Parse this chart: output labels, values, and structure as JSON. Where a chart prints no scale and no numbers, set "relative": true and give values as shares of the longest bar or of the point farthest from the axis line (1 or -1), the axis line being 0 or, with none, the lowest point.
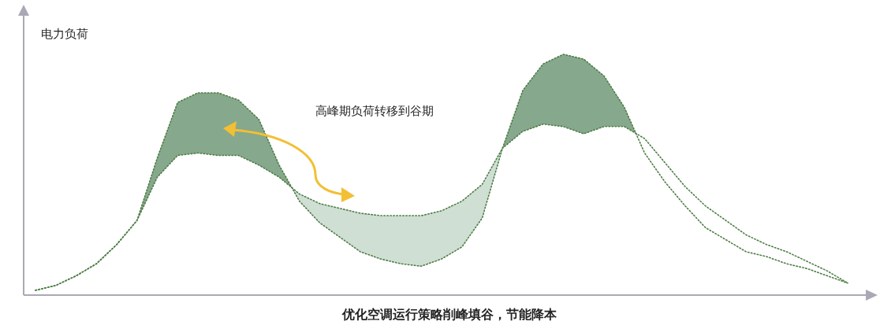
{
  "chart_data": {
    "type": "line",
    "relative": true,
    "xlabel": "优化空调运行策略削峰填谷，节能降本",
    "ylabel": "电力负荷",
    "annotations": [
      "高峰期负荷转移到谷期"
    ],
    "line_style": "dotted",
    "categories": [
      null,
      null,
      null,
      null,
      null,
      null,
      null,
      null,
      null,
      null,
      null,
      null,
      null,
      null,
      null,
      null,
      null,
      null,
      null,
      null,
      null,
      null,
      null,
      null,
      null,
      null,
      null,
      null,
      null,
      null,
      null,
      null,
      null,
      null,
      null,
      null,
      null,
      null,
      null,
      null,
      null
    ],
    "series": [
      {
        "color": "#4e7d45",
        "values": [
          0.02,
          0.04,
          0.08,
          0.13,
          0.21,
          0.31,
          0.57,
          0.8,
          0.84,
          0.84,
          0.81,
          0.73,
          0.54,
          0.39,
          0.3,
          0.24,
          0.18,
          0.15,
          0.13,
          0.12,
          0.15,
          0.2,
          0.32,
          0.61,
          0.85,
          0.96,
          1.0,
          0.98,
          0.91,
          0.78,
          0.59,
          0.47,
          0.37,
          0.28,
          0.23,
          0.18,
          0.16,
          0.13,
          0.11,
          0.08,
          0.05
        ]
      },
      {
        "color": "#4e7d46",
        "values": [
          0.02,
          0.04,
          0.08,
          0.13,
          0.21,
          0.31,
          0.49,
          0.58,
          0.59,
          0.58,
          0.58,
          0.54,
          0.49,
          0.42,
          0.38,
          0.36,
          0.34,
          0.33,
          0.33,
          0.33,
          0.35,
          0.39,
          0.46,
          0.61,
          0.68,
          0.71,
          0.7,
          0.67,
          0.7,
          0.7,
          0.65,
          0.55,
          0.45,
          0.37,
          0.31,
          0.25,
          0.21,
          0.18,
          0.14,
          0.1,
          0.05
        ]
      }
    ]
  }
}
